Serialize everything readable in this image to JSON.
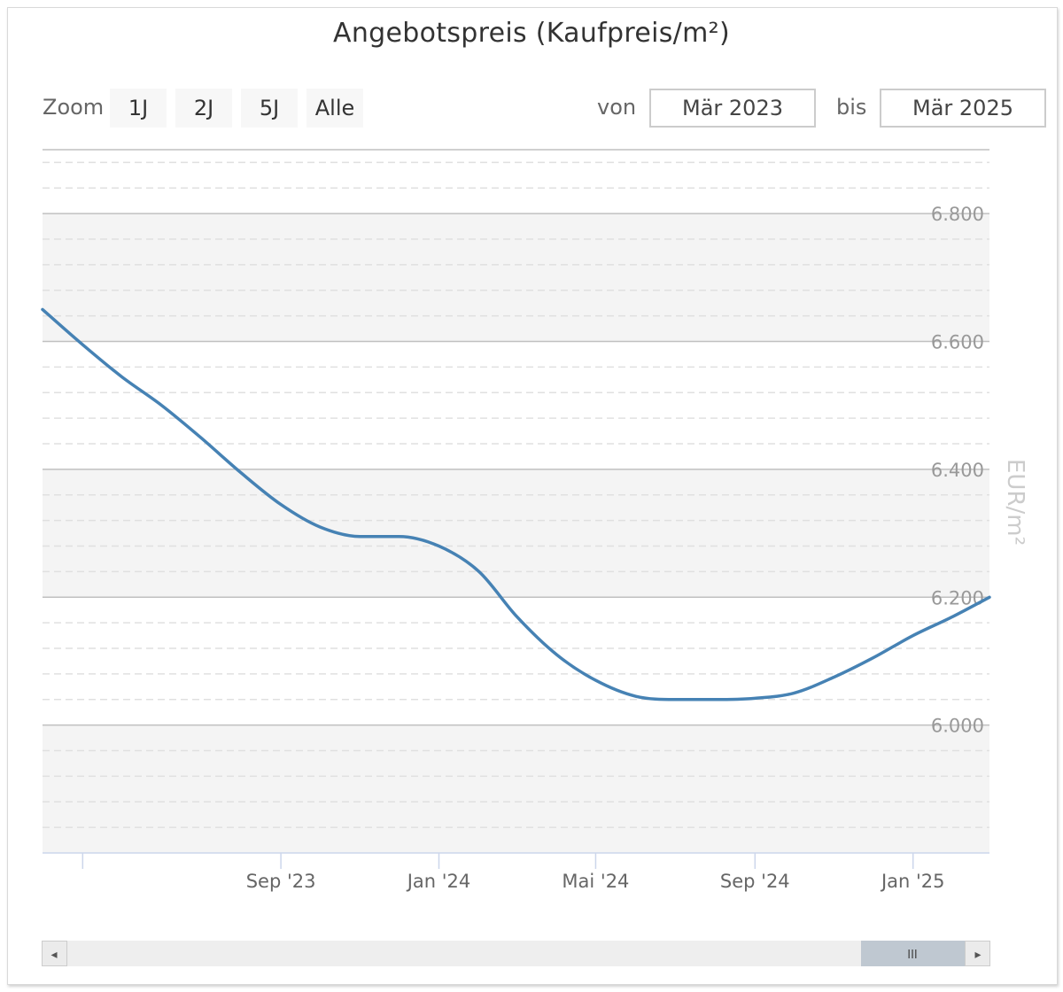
{
  "title": "Angebotspreis (Kaufpreis/m²)",
  "zoom": {
    "label": "Zoom",
    "buttons": [
      "1J",
      "2J",
      "5J",
      "Alle"
    ]
  },
  "range": {
    "from_label": "von",
    "from_value": "Mär 2023",
    "to_label": "bis",
    "to_value": "Mär 2025"
  },
  "colors": {
    "line": "#4682b4",
    "band": "#f4f4f4",
    "grid_major": "#c0c0c0",
    "grid_minor": "#e0e0e0",
    "axis_text": "#999999",
    "x_text": "#666666"
  },
  "chart_data": {
    "type": "line",
    "ylabel": "EUR/m²",
    "ylim": [
      5800,
      6900
    ],
    "yticks": [
      {
        "value": 6000,
        "label": "6.000"
      },
      {
        "value": 6200,
        "label": "6.200"
      },
      {
        "value": 6400,
        "label": "6.400"
      },
      {
        "value": 6600,
        "label": "6.600"
      },
      {
        "value": 6800,
        "label": "6.800"
      }
    ],
    "xlim": [
      "2023-03-01",
      "2025-03-01"
    ],
    "xticks": [
      {
        "date": "2023-04-01",
        "label": ""
      },
      {
        "date": "2023-09-01",
        "label": "Sep '23"
      },
      {
        "date": "2024-01-01",
        "label": "Jan '24"
      },
      {
        "date": "2024-05-01",
        "label": "Mai '24"
      },
      {
        "date": "2024-09-01",
        "label": "Sep '24"
      },
      {
        "date": "2025-01-01",
        "label": "Jan '25"
      }
    ],
    "series": [
      {
        "x": [
          "2023-03-01",
          "2023-04-01",
          "2023-05-01",
          "2023-06-01",
          "2023-07-01",
          "2023-08-01",
          "2023-09-01",
          "2023-10-01",
          "2023-11-01",
          "2023-12-01",
          "2024-01-01",
          "2024-02-01",
          "2024-03-01",
          "2024-04-01",
          "2024-05-01",
          "2024-06-01",
          "2024-07-01",
          "2024-08-01",
          "2024-09-01",
          "2024-10-01",
          "2024-11-01",
          "2024-12-01",
          "2025-01-01",
          "2025-02-01",
          "2025-03-01"
        ],
        "values": [
          6650,
          6595,
          6545,
          6500,
          6450,
          6395,
          6345,
          6310,
          6295,
          6295,
          6280,
          6240,
          6170,
          6110,
          6070,
          6045,
          6040,
          6040,
          6042,
          6050,
          6075,
          6105,
          6140,
          6170,
          6200
        ]
      }
    ]
  },
  "navigator": {
    "left_arrow": "◂",
    "right_arrow": "▸",
    "grip": "III"
  }
}
